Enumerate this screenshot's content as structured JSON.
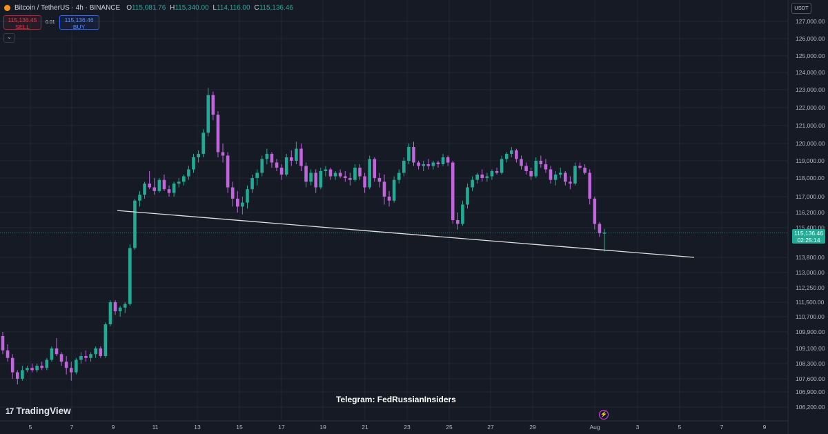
{
  "header": {
    "symbol": "Bitcoin / TetherUS · 4h · BINANCE",
    "ohlc": [
      {
        "key": "O",
        "value": "115,081.76"
      },
      {
        "key": "H",
        "value": "115,340.00"
      },
      {
        "key": "L",
        "value": "114,116.00"
      },
      {
        "key": "C",
        "value": "115,136.46"
      }
    ]
  },
  "trade": {
    "sell_price": "115,136.45",
    "sell_label": "SELL",
    "quantity": "0.01",
    "buy_price": "115,136.46",
    "buy_label": "BUY"
  },
  "currency": "USDT",
  "last_price": {
    "value": "115,136.46",
    "countdown": "02:25:14"
  },
  "watermark": "Telegram: FedRussianInsiders",
  "brand": "TradingView",
  "colors": {
    "up": "#22ab94",
    "down": "#c165dc",
    "trendline": "#e0e0e0",
    "background": "#161a25",
    "grid": "#232733"
  },
  "chart_data": {
    "type": "candlestick",
    "timeframe": "4h",
    "y_ticks": [
      127000,
      126000,
      125000,
      124000,
      123000,
      122000,
      121000,
      120000,
      119000,
      118000,
      117000,
      116200,
      115400,
      113800,
      113000,
      112250,
      111500,
      110700,
      109900,
      109100,
      108300,
      107600,
      106900,
      106200
    ],
    "y_tick_labels": [
      "127,000.00",
      "126,000.00",
      "125,000.00",
      "124,000.00",
      "123,000.00",
      "122,000.00",
      "121,000.00",
      "120,000.00",
      "119,000.00",
      "118,000.00",
      "117,000.00",
      "116,200.00",
      "115,400.00",
      "113,800.00",
      "113,000.00",
      "112,250.00",
      "111,500.00",
      "110,700.00",
      "109,900.00",
      "109,100.00",
      "108,300.00",
      "107,600.00",
      "106,900.00",
      "106,200.00"
    ],
    "x_ticks": [
      "5",
      "7",
      "9",
      "11",
      "13",
      "15",
      "17",
      "19",
      "21",
      "23",
      "25",
      "27",
      "29",
      "Aug",
      "3",
      "5",
      "7",
      "9"
    ],
    "close_path": [
      [
        0,
        109800
      ],
      [
        4,
        109300
      ],
      [
        7,
        108200
      ],
      [
        9,
        107600
      ],
      [
        12,
        107900
      ],
      [
        16,
        108100
      ],
      [
        18,
        108300
      ],
      [
        19,
        108800
      ],
      [
        21,
        108300
      ],
      [
        23,
        108200
      ],
      [
        25,
        108900
      ],
      [
        28,
        108700
      ],
      [
        30,
        110400
      ],
      [
        32,
        111500
      ],
      [
        35,
        111100
      ],
      [
        37,
        114300
      ],
      [
        39,
        116800
      ],
      [
        43,
        117800
      ],
      [
        47,
        117400
      ],
      [
        49,
        117700
      ],
      [
        52,
        117900
      ],
      [
        55,
        119400
      ],
      [
        58,
        122500
      ],
      [
        60,
        119300
      ],
      [
        62,
        116800
      ],
      [
        64,
        116200
      ],
      [
        66,
        117500
      ],
      [
        68,
        118300
      ],
      [
        70,
        119300
      ],
      [
        73,
        118900
      ],
      [
        75,
        118100
      ],
      [
        78,
        118600
      ],
      [
        80,
        119500
      ],
      [
        82,
        117800
      ],
      [
        85,
        118600
      ],
      [
        89,
        118200
      ],
      [
        92,
        117900
      ],
      [
        95,
        118400
      ],
      [
        97,
        118100
      ],
      [
        99,
        119300
      ],
      [
        102,
        117300
      ],
      [
        105,
        119000
      ],
      [
        107,
        119800
      ],
      [
        110,
        118800
      ],
      [
        113,
        118900
      ],
      [
        115,
        119000
      ],
      [
        117,
        118800
      ],
      [
        119,
        115600
      ],
      [
        121,
        116500
      ],
      [
        124,
        117900
      ],
      [
        126,
        118300
      ],
      [
        129,
        118400
      ],
      [
        132,
        119600
      ],
      [
        135,
        119000
      ],
      [
        137,
        118400
      ],
      [
        140,
        119100
      ],
      [
        143,
        118100
      ],
      [
        146,
        118400
      ],
      [
        148,
        117500
      ],
      [
        150,
        118600
      ],
      [
        153,
        118700
      ],
      [
        155,
        116600
      ],
      [
        157,
        115300
      ],
      [
        158,
        115136.46
      ]
    ],
    "candles": [
      [
        109700,
        109900,
        108800,
        109000
      ],
      [
        109000,
        109300,
        108400,
        108600
      ],
      [
        108600,
        108800,
        107600,
        107900
      ],
      [
        107900,
        108000,
        107300,
        107600
      ],
      [
        107600,
        108200,
        107500,
        108000
      ],
      [
        108000,
        108200,
        107900,
        108100
      ],
      [
        108100,
        108300,
        107900,
        108000
      ],
      [
        108000,
        108300,
        107900,
        108200
      ],
      [
        108200,
        108400,
        108000,
        108100
      ],
      [
        108100,
        108600,
        108000,
        108500
      ],
      [
        108500,
        109200,
        108400,
        109100
      ],
      [
        109100,
        109600,
        108700,
        108800
      ],
      [
        108800,
        108900,
        108200,
        108400
      ],
      [
        108400,
        108700,
        107800,
        108100
      ],
      [
        108100,
        108400,
        107500,
        107900
      ],
      [
        107900,
        108600,
        107800,
        108500
      ],
      [
        108500,
        108900,
        108300,
        108700
      ],
      [
        108700,
        109000,
        108400,
        108600
      ],
      [
        108600,
        108900,
        108400,
        108800
      ],
      [
        108800,
        109200,
        108600,
        109100
      ],
      [
        109100,
        109200,
        108600,
        108700
      ],
      [
        108700,
        110400,
        108600,
        110300
      ],
      [
        110300,
        111600,
        110200,
        111500
      ],
      [
        111500,
        111600,
        110800,
        111000
      ],
      [
        111000,
        111300,
        110700,
        111200
      ],
      [
        111200,
        111500,
        110900,
        111400
      ],
      [
        111400,
        114500,
        111300,
        114300
      ],
      [
        114300,
        116900,
        114200,
        116800
      ],
      [
        116800,
        117300,
        116500,
        117100
      ],
      [
        117100,
        117800,
        116900,
        117700
      ],
      [
        117700,
        118400,
        117400,
        117500
      ],
      [
        117500,
        118000,
        117100,
        117300
      ],
      [
        117300,
        118000,
        117200,
        117900
      ],
      [
        117900,
        118200,
        117300,
        117400
      ],
      [
        117400,
        117600,
        117000,
        117200
      ],
      [
        117200,
        117800,
        117000,
        117700
      ],
      [
        117700,
        118000,
        117500,
        117800
      ],
      [
        117800,
        118200,
        117600,
        118100
      ],
      [
        118100,
        118700,
        117900,
        118500
      ],
      [
        118500,
        119400,
        118300,
        119200
      ],
      [
        119200,
        119600,
        118900,
        119400
      ],
      [
        119400,
        120800,
        119200,
        120600
      ],
      [
        120600,
        123100,
        120400,
        122700
      ],
      [
        122700,
        122900,
        121300,
        121600
      ],
      [
        121600,
        121800,
        119200,
        119500
      ],
      [
        119500,
        120000,
        118900,
        119300
      ],
      [
        119300,
        119500,
        117200,
        117500
      ],
      [
        117500,
        117800,
        116500,
        116900
      ],
      [
        116900,
        117300,
        116200,
        116500
      ],
      [
        116500,
        117000,
        116100,
        116700
      ],
      [
        116700,
        117600,
        116400,
        117400
      ],
      [
        117400,
        118200,
        117200,
        118000
      ],
      [
        118000,
        118500,
        117600,
        118300
      ],
      [
        118300,
        119300,
        118100,
        119100
      ],
      [
        119100,
        119700,
        118800,
        119400
      ],
      [
        119400,
        119500,
        118600,
        118900
      ],
      [
        118900,
        119100,
        118400,
        118600
      ],
      [
        118600,
        118800,
        117900,
        118200
      ],
      [
        118200,
        119400,
        118100,
        119200
      ],
      [
        119200,
        119600,
        118700,
        119000
      ],
      [
        119000,
        120100,
        118800,
        119700
      ],
      [
        119700,
        120000,
        118400,
        118700
      ],
      [
        118700,
        118900,
        117500,
        117800
      ],
      [
        117800,
        118500,
        117600,
        118300
      ],
      [
        118300,
        118500,
        117200,
        117500
      ],
      [
        117500,
        118600,
        117400,
        118400
      ],
      [
        118400,
        118700,
        118100,
        118500
      ],
      [
        118500,
        118600,
        117900,
        118100
      ],
      [
        118100,
        118400,
        117900,
        118300
      ],
      [
        118300,
        118500,
        118000,
        118100
      ],
      [
        118100,
        118400,
        117800,
        118000
      ],
      [
        118000,
        118300,
        117600,
        117900
      ],
      [
        117900,
        118800,
        117800,
        118600
      ],
      [
        118600,
        118800,
        117900,
        118100
      ],
      [
        118100,
        118300,
        117200,
        117500
      ],
      [
        117500,
        119300,
        117400,
        119100
      ],
      [
        119100,
        119200,
        117800,
        118000
      ],
      [
        118000,
        118300,
        117500,
        117800
      ],
      [
        117800,
        118200,
        116600,
        117000
      ],
      [
        117000,
        117300,
        116500,
        116800
      ],
      [
        116800,
        118100,
        116700,
        117900
      ],
      [
        117900,
        118500,
        117700,
        118300
      ],
      [
        118300,
        119200,
        118100,
        119000
      ],
      [
        119000,
        120000,
        118800,
        119800
      ],
      [
        119800,
        120100,
        118700,
        118900
      ],
      [
        118900,
        119000,
        118500,
        118700
      ],
      [
        118700,
        119000,
        118400,
        118800
      ],
      [
        118800,
        119100,
        118500,
        118700
      ],
      [
        118700,
        119000,
        118500,
        118900
      ],
      [
        118900,
        119000,
        118600,
        118800
      ],
      [
        118800,
        119400,
        118700,
        119200
      ],
      [
        119200,
        119300,
        118700,
        118900
      ],
      [
        118900,
        119000,
        115600,
        115800
      ],
      [
        115800,
        116200,
        115300,
        115600
      ],
      [
        115600,
        116800,
        115500,
        116600
      ],
      [
        116600,
        117700,
        116400,
        117500
      ],
      [
        117500,
        118100,
        117300,
        117900
      ],
      [
        117900,
        118300,
        117700,
        118200
      ],
      [
        118200,
        118500,
        117800,
        118000
      ],
      [
        118000,
        118300,
        117800,
        118100
      ],
      [
        118100,
        118500,
        117900,
        118400
      ],
      [
        118400,
        118600,
        118200,
        118300
      ],
      [
        118300,
        119300,
        118200,
        119100
      ],
      [
        119100,
        119500,
        118900,
        119400
      ],
      [
        119400,
        119800,
        119200,
        119600
      ],
      [
        119600,
        119700,
        118900,
        119100
      ],
      [
        119100,
        119300,
        118500,
        118700
      ],
      [
        118700,
        118900,
        118200,
        118400
      ],
      [
        118400,
        118600,
        117900,
        118100
      ],
      [
        118100,
        119200,
        118000,
        119000
      ],
      [
        119000,
        119300,
        118600,
        118800
      ],
      [
        118800,
        119100,
        118300,
        118500
      ],
      [
        118500,
        118700,
        117700,
        117900
      ],
      [
        117900,
        118400,
        117600,
        118200
      ],
      [
        118200,
        118600,
        118000,
        118300
      ],
      [
        118300,
        118400,
        117600,
        117800
      ],
      [
        117800,
        118100,
        117400,
        117700
      ],
      [
        117700,
        118900,
        117600,
        118700
      ],
      [
        118700,
        118900,
        118500,
        118600
      ],
      [
        118600,
        118800,
        118200,
        118300
      ],
      [
        118300,
        118500,
        116600,
        116900
      ],
      [
        116900,
        117000,
        115300,
        115600
      ],
      [
        115600,
        115700,
        114900,
        115100
      ],
      [
        115081.76,
        115340.0,
        114116.0,
        115136.46
      ]
    ],
    "trendline": [
      [
        116300,
        "Jul 9"
      ],
      [
        113800,
        "Aug 6"
      ]
    ]
  }
}
